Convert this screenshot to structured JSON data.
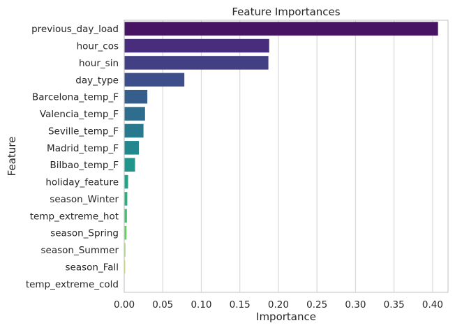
{
  "chart_data": {
    "type": "bar",
    "orientation": "horizontal",
    "title": "Feature Importances",
    "xlabel": "Importance",
    "ylabel": "Feature",
    "xlim": [
      0,
      0.42
    ],
    "xticks": [
      "0.00",
      "0.05",
      "0.10",
      "0.15",
      "0.20",
      "0.25",
      "0.30",
      "0.35",
      "0.40"
    ],
    "grid": "vertical",
    "legend": "none",
    "categories": [
      "previous_day_load",
      "hour_cos",
      "hour_sin",
      "day_type",
      "Barcelona_temp_F",
      "Valencia_temp_F",
      "Seville_temp_F",
      "Madrid_temp_F",
      "Bilbao_temp_F",
      "holiday_feature",
      "season_Winter",
      "temp_extreme_hot",
      "season_Spring",
      "season_Summer",
      "season_Fall",
      "temp_extreme_cold"
    ],
    "values": [
      0.407,
      0.188,
      0.187,
      0.078,
      0.03,
      0.027,
      0.025,
      0.019,
      0.014,
      0.005,
      0.004,
      0.0035,
      0.003,
      0.0015,
      0.0012,
      0.0
    ],
    "colors": [
      "#471463",
      "#472d7b",
      "#433f84",
      "#3d4e8a",
      "#355e8d",
      "#2e6d8e",
      "#29798e",
      "#23888e",
      "#1f958b",
      "#20a386",
      "#2ab07f",
      "#44bf70",
      "#66cb5d",
      "#8fd744",
      "#bade28",
      "#e2e418"
    ]
  }
}
